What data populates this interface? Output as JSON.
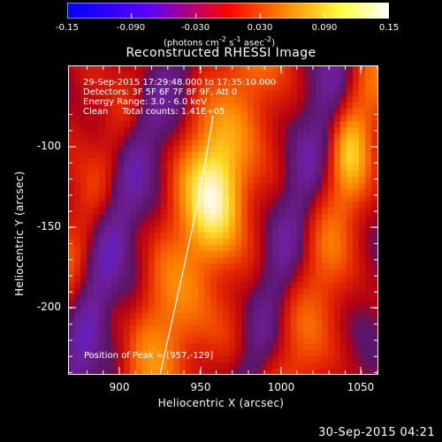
{
  "colorbar": {
    "min": -0.15,
    "max": 0.15,
    "ticks": [
      "-0.15",
      "-0.090",
      "-0.030",
      "0.030",
      "0.090",
      "0.15"
    ],
    "units_parts": [
      "(photons cm",
      "-2",
      " s",
      "-1",
      " asec",
      "-2",
      ")"
    ],
    "colormap_stops": [
      "#0000ff",
      "#5a00ff",
      "#ff0000",
      "#ff8a00",
      "#ffff40",
      "#ffffff"
    ]
  },
  "plot": {
    "title": "Reconstructed RHESSI Image",
    "xlabel": "Heliocentric X (arcsec)",
    "ylabel": "Heliocentric Y (arcsec)",
    "x_ticks": [
      "900",
      "950",
      "1000",
      "1050"
    ],
    "y_ticks": [
      "-100",
      "-150",
      "-200"
    ],
    "annotations": [
      "29-Sep-2015 17:29:48.000 to 17:35:10.000",
      "Detectors: 3F 5F 6F 7F 8F 9F, Att 0",
      "Energy Range: 3.0 - 6.0 keV",
      "Clean     Total counts: 1.41E+05"
    ],
    "peak_label": "Position of Peak = [957,-129]"
  },
  "chart_data": {
    "type": "heatmap",
    "title": "Reconstructed RHESSI Image",
    "xlabel": "Heliocentric X (arcsec)",
    "ylabel": "Heliocentric Y (arcsec)",
    "xlim": [
      868,
      1058
    ],
    "ylim": [
      -243,
      -63
    ],
    "x_ticks": [
      900,
      950,
      1000,
      1050
    ],
    "y_ticks": [
      -100,
      -150,
      -200
    ],
    "colorbar_range": [
      -0.15,
      0.15
    ],
    "colorbar_ticks": [
      -0.15,
      -0.09,
      -0.03,
      0.03,
      0.09,
      0.15
    ],
    "peak": [
      957,
      -129
    ],
    "limb": "solar limb arc from (929,-243) to (953,-85)"
  },
  "timestamp": "30-Sep-2015 04:21"
}
